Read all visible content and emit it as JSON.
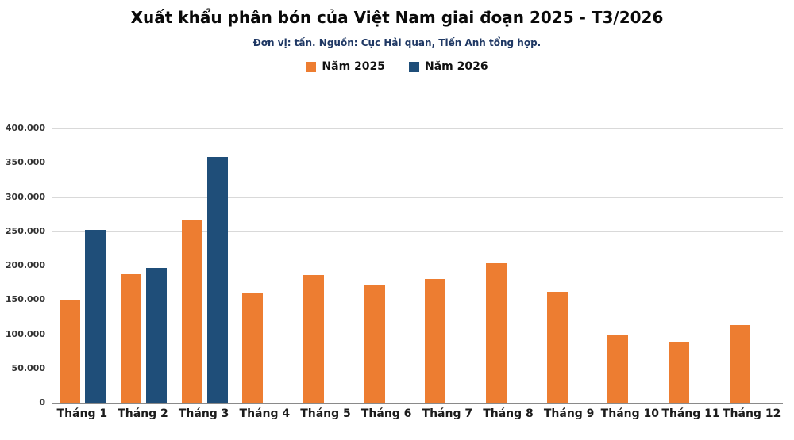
{
  "title": "Xuất khẩu phân bón của Việt Nam giai đoạn 2025 - T3/2026",
  "subtitle": "Đơn vị: tấn. Nguồn: Cục Hải quan, Tiến Anh tổng hợp.",
  "legend": [
    {
      "label": "Năm 2025",
      "color": "#ED7D31"
    },
    {
      "label": "Năm 2026",
      "color": "#1F4E79"
    }
  ],
  "chart_data": {
    "type": "bar",
    "title": "Xuất khẩu phân bón của Việt Nam giai đoạn 2025 - T3/2026",
    "subtitle": "Đơn vị: tấn. Nguồn: Cục Hải quan, Tiến Anh tổng hợp.",
    "categories": [
      "Tháng 1",
      "Tháng 2",
      "Tháng 3",
      "Tháng 4",
      "Tháng 5",
      "Tháng 6",
      "Tháng 7",
      "Tháng 8",
      "Tháng 9",
      "Tháng 10",
      "Tháng 11",
      "Tháng 12"
    ],
    "series": [
      {
        "name": "Năm 2025",
        "color": "#ED7D31",
        "values": [
          149000,
          187000,
          266000,
          160000,
          186000,
          171000,
          180000,
          204000,
          162000,
          100000,
          88000,
          113000
        ]
      },
      {
        "name": "Năm 2026",
        "color": "#1F4E79",
        "values": [
          252000,
          197000,
          358000,
          null,
          null,
          null,
          null,
          null,
          null,
          null,
          null,
          null
        ]
      }
    ],
    "xlabel": "",
    "ylabel": "",
    "ylim": [
      0,
      400000
    ],
    "grid": true,
    "legend_position": "top",
    "y_ticks": [
      {
        "value": 0,
        "label": "0"
      },
      {
        "value": 50000,
        "label": "50.000"
      },
      {
        "value": 100000,
        "label": "100.000"
      },
      {
        "value": 150000,
        "label": "150.000"
      },
      {
        "value": 200000,
        "label": "200.000"
      },
      {
        "value": 250000,
        "label": "250.000"
      },
      {
        "value": 300000,
        "label": "300.000"
      },
      {
        "value": 350000,
        "label": "350.000"
      },
      {
        "value": 400000,
        "label": "400.000"
      }
    ]
  }
}
